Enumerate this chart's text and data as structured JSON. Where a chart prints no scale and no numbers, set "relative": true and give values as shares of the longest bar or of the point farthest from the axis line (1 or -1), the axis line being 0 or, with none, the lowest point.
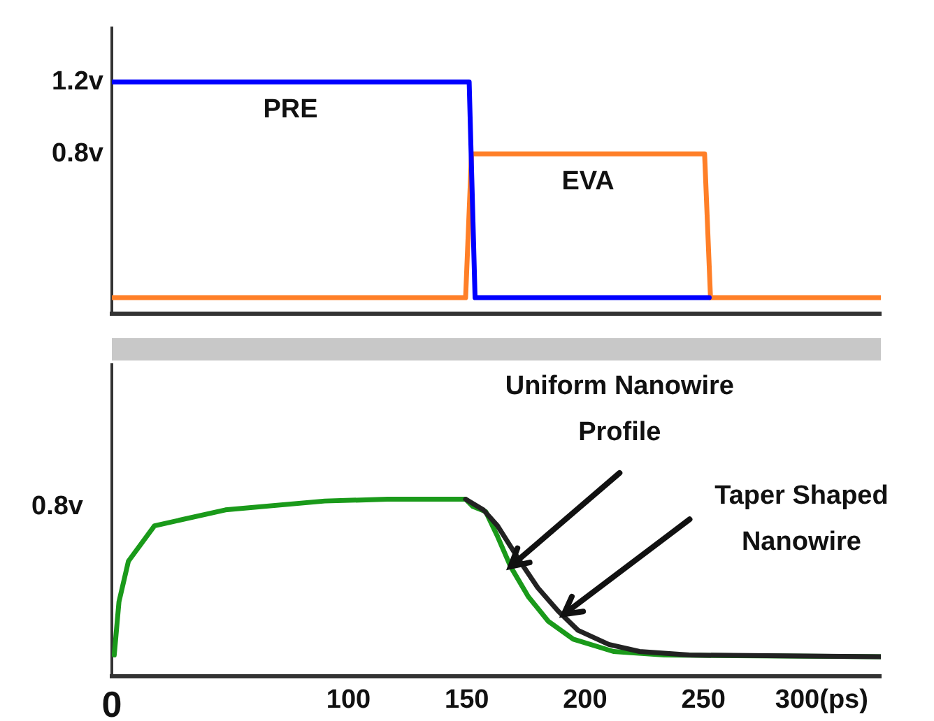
{
  "chart_data": [
    {
      "type": "line",
      "xlim": [
        0,
        325
      ],
      "ylim": [
        -0.09,
        1.5
      ],
      "yticks": [
        {
          "value": 1.2,
          "label": "1.2v"
        },
        {
          "value": 0.8,
          "label": "0.8v"
        }
      ],
      "tick_labels": "y",
      "grid": false,
      "legend": false,
      "marker": "none",
      "line_style": "solid",
      "series": [
        {
          "name": "PRE",
          "color": "#0000ff",
          "x": [
            0,
            151,
            153.5,
            252.5
          ],
          "values": [
            1.2,
            1.2,
            0,
            0
          ]
        },
        {
          "name": "EVA",
          "color": "#ff7f27",
          "x": [
            0,
            149.5,
            152,
            250.5,
            253,
            325
          ],
          "values": [
            0,
            0,
            0.8,
            0.8,
            0,
            0
          ]
        }
      ]
    },
    {
      "type": "line",
      "relative": true,
      "xlim": [
        0,
        325
      ],
      "xticks": [
        0,
        100,
        150,
        200,
        250,
        {
          "value": 300,
          "label": "300(ps)"
        }
      ],
      "grid": false,
      "legend": false,
      "marker": "none",
      "line_style": "solid",
      "series": [
        {
          "color": "#222222",
          "x": [
            149.5,
            157,
            163,
            171.5,
            180,
            188.5,
            197,
            210,
            223,
            244,
            325
          ],
          "values": [
            1,
            0.94,
            0.85,
            0.67,
            0.5,
            0.37,
            0.26,
            0.18,
            0.14,
            0.12,
            0.11
          ]
        },
        {
          "color": "#1a9a1a",
          "x": [
            1,
            3,
            7,
            18,
            48,
            90,
            116.5,
            149.5,
            152.5,
            158,
            163,
            168.5,
            176,
            184.5,
            195,
            212,
            233.5,
            325
          ],
          "values": [
            0.12,
            0.42,
            0.65,
            0.85,
            0.94,
            0.99,
            1,
            1,
            0.96,
            0.93,
            0.79,
            0.62,
            0.45,
            0.31,
            0.21,
            0.14,
            0.12,
            0.11
          ]
        }
      ],
      "annotations": [
        {
          "text": "Uniform Nanowire\nProfile",
          "x": 168.5,
          "y": 0.62
        },
        {
          "text": "Taper Shaped\nNanowire",
          "x": 191,
          "y": 0.35
        },
        "0.8v"
      ]
    }
  ]
}
